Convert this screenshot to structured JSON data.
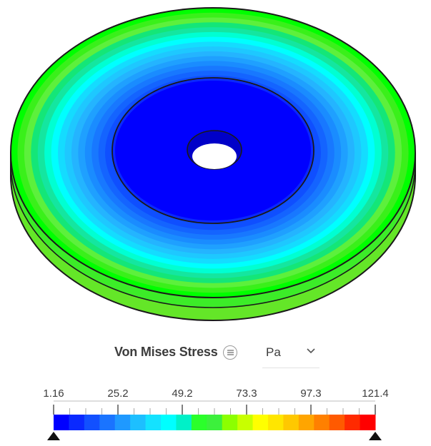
{
  "legend": {
    "title": "Von Mises Stress",
    "menu_icon": "menu-lines-icon",
    "unit": "Pa",
    "dropdown_icon": "chevron-down-icon",
    "tick_labels": [
      "1.16",
      "25.2",
      "49.2",
      "73.3",
      "97.3",
      "121.4"
    ],
    "colors": [
      "#0000ff",
      "#0a29ff",
      "#1250ff",
      "#1a74ff",
      "#1f99ff",
      "#1dbfff",
      "#14e2ff",
      "#00ffff",
      "#00f0c8",
      "#2bff2b",
      "#3cf03c",
      "#8cff00",
      "#c8ff00",
      "#ffff00",
      "#ffe600",
      "#ffc800",
      "#ffa500",
      "#ff8000",
      "#ff5a00",
      "#ff2a00",
      "#ff0000"
    ]
  },
  "model": {
    "top_bands": [
      "#00ff00",
      "#3af01a",
      "#5df03c",
      "#14e678",
      "#14e6a0",
      "#00ffd2",
      "#00ffff",
      "#14dcff",
      "#1ec8ff",
      "#24b4ff",
      "#1fa0ff",
      "#1a8cff",
      "#1878ff",
      "#1464ff",
      "#0f4fff"
    ],
    "inner_disk_color": "#0000ff",
    "hub_band": "#0a28ff",
    "rim_upper_color": "#3cec28",
    "rim_lower_colors": [
      "#64e628",
      "#a0e61e",
      "#d2e614",
      "#e6dc14"
    ]
  }
}
